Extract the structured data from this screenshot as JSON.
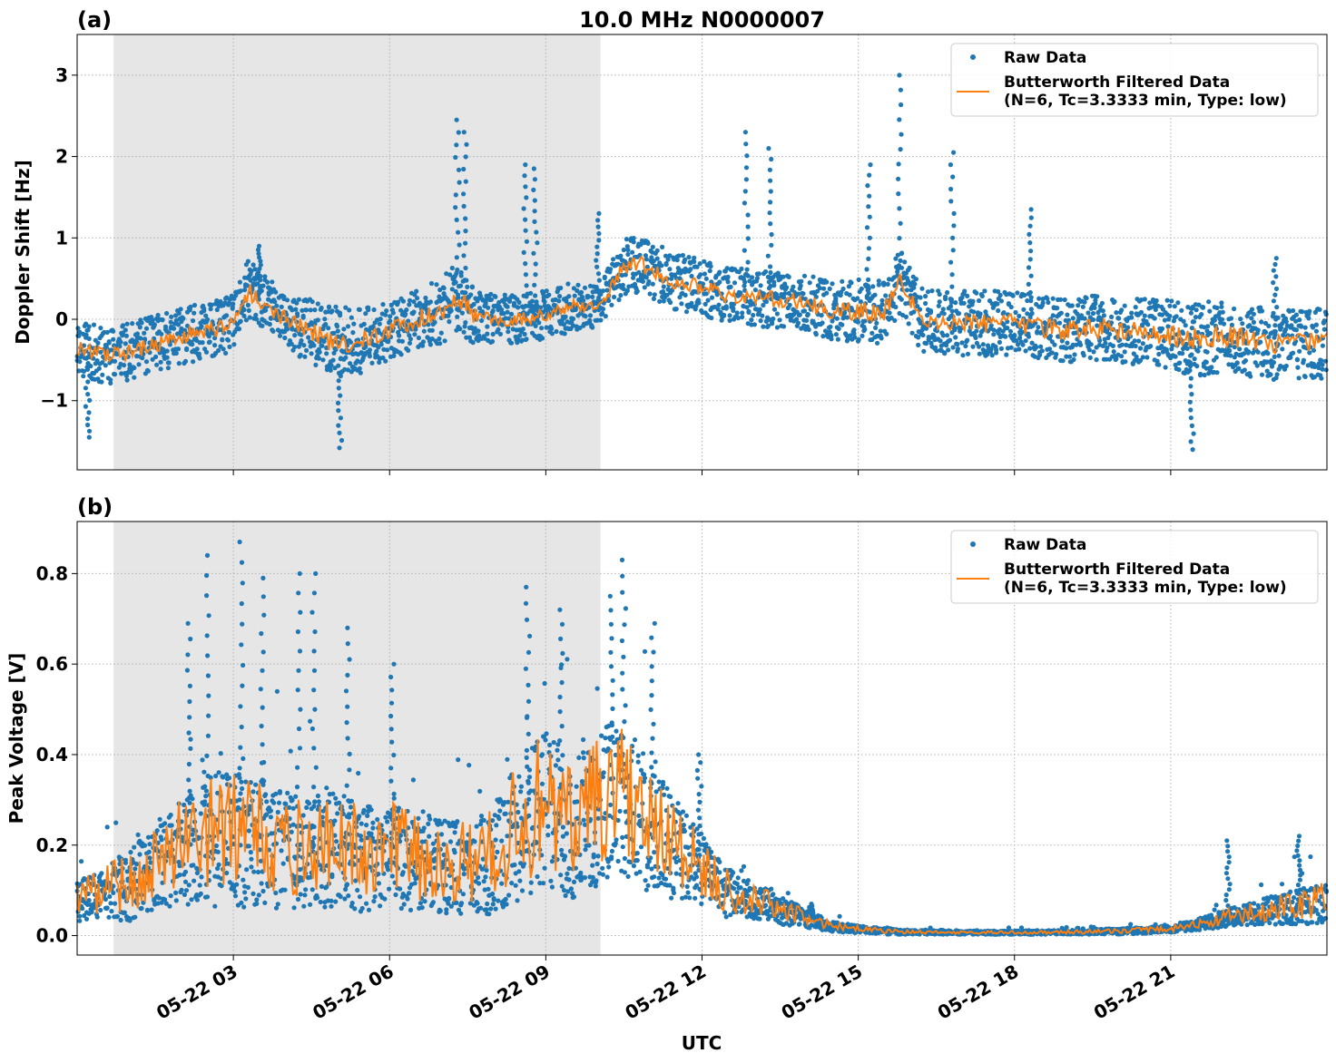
{
  "chart_data": [
    {
      "type": "scatter",
      "panel_label": "(a)",
      "title": "10.0 MHz N0000007",
      "xlabel": "",
      "ylabel": "Doppler Shift [Hz]",
      "x_unit": "hours since 05-22 00:00 UTC",
      "xlim": [
        0.0,
        24.0
      ],
      "ylim": [
        -1.85,
        3.5
      ],
      "yticks": [
        -1,
        0,
        1,
        2,
        3
      ],
      "ytick_labels": [
        "−1",
        "0",
        "1",
        "2",
        "3"
      ],
      "grid": true,
      "legend_position": "top-right",
      "shaded_xrange": [
        0.7,
        10.05
      ],
      "series": [
        {
          "name": "Raw Data",
          "style": "points",
          "color": "#1f77b4",
          "x": [
            0.0,
            0.5,
            1.0,
            1.5,
            2.0,
            2.5,
            3.0,
            3.3,
            3.6,
            4.0,
            4.5,
            5.0,
            5.5,
            6.0,
            6.5,
            7.0,
            7.3,
            7.6,
            8.0,
            8.5,
            9.0,
            9.5,
            10.0,
            10.3,
            10.6,
            10.9,
            11.2,
            11.5,
            12.0,
            12.5,
            13.0,
            13.5,
            14.0,
            14.5,
            15.0,
            15.5,
            15.8,
            16.2,
            16.8,
            17.5,
            18.0,
            18.5,
            19.0,
            19.5,
            20.0,
            20.5,
            21.0,
            21.5,
            22.0,
            22.5,
            23.0,
            23.5,
            24.0
          ],
          "y": [
            -0.35,
            -0.45,
            -0.4,
            -0.3,
            -0.2,
            -0.15,
            -0.05,
            0.35,
            0.2,
            0.0,
            -0.15,
            -0.3,
            -0.25,
            -0.15,
            0.0,
            0.1,
            0.3,
            0.05,
            0.0,
            0.0,
            0.05,
            0.15,
            0.15,
            0.45,
            0.7,
            0.65,
            0.55,
            0.45,
            0.4,
            0.3,
            0.25,
            0.25,
            0.2,
            0.1,
            0.1,
            0.1,
            0.45,
            0.0,
            -0.05,
            -0.05,
            -0.05,
            -0.1,
            -0.15,
            -0.1,
            -0.15,
            -0.15,
            -0.2,
            -0.25,
            -0.2,
            -0.25,
            -0.3,
            -0.3,
            -0.3
          ],
          "spread": [
            0.35,
            0.35,
            0.35,
            0.35,
            0.35,
            0.35,
            0.35,
            0.4,
            0.35,
            0.35,
            0.4,
            0.45,
            0.4,
            0.35,
            0.35,
            0.4,
            0.45,
            0.35,
            0.3,
            0.3,
            0.3,
            0.3,
            0.25,
            0.3,
            0.35,
            0.35,
            0.35,
            0.35,
            0.35,
            0.35,
            0.35,
            0.35,
            0.35,
            0.35,
            0.4,
            0.4,
            0.4,
            0.4,
            0.4,
            0.4,
            0.4,
            0.4,
            0.4,
            0.4,
            0.4,
            0.4,
            0.45,
            0.45,
            0.45,
            0.45,
            0.45,
            0.45,
            0.45
          ],
          "spikes": [
            {
              "x": 3.5,
              "y": 0.9
            },
            {
              "x": 5.05,
              "y": -1.58
            },
            {
              "x": 7.3,
              "y": 2.45
            },
            {
              "x": 7.45,
              "y": 2.3
            },
            {
              "x": 8.6,
              "y": 1.9
            },
            {
              "x": 8.8,
              "y": 1.85
            },
            {
              "x": 10.0,
              "y": 1.3
            },
            {
              "x": 12.85,
              "y": 2.3
            },
            {
              "x": 13.3,
              "y": 2.1
            },
            {
              "x": 15.2,
              "y": 1.9
            },
            {
              "x": 15.8,
              "y": 3.0
            },
            {
              "x": 16.8,
              "y": 2.05
            },
            {
              "x": 18.3,
              "y": 1.35
            },
            {
              "x": 21.4,
              "y": -1.6
            },
            {
              "x": 0.2,
              "y": -1.45
            },
            {
              "x": 23.0,
              "y": 0.75
            }
          ]
        },
        {
          "name": "Butterworth Filtered Data\n(N=6, Tc=3.3333 min, Type: low)",
          "style": "line",
          "color": "#ff7f0e"
        }
      ]
    },
    {
      "type": "scatter",
      "panel_label": "(b)",
      "title": "",
      "xlabel": "UTC",
      "ylabel": "Peak Voltage [V]",
      "x_unit": "hours since 05-22 00:00 UTC",
      "xlim": [
        0.0,
        24.0
      ],
      "ylim": [
        -0.043,
        0.915
      ],
      "yticks": [
        0.0,
        0.2,
        0.4,
        0.6,
        0.8
      ],
      "ytick_labels": [
        "0.0",
        "0.2",
        "0.4",
        "0.6",
        "0.8"
      ],
      "xticks": [
        3,
        6,
        9,
        12,
        15,
        18,
        21
      ],
      "xtick_labels": [
        "05-22 03",
        "05-22 06",
        "05-22 09",
        "05-22 12",
        "05-22 15",
        "05-22 18",
        "05-22 21"
      ],
      "grid": true,
      "legend_position": "top-right",
      "shaded_xrange": [
        0.7,
        10.05
      ],
      "series": [
        {
          "name": "Raw Data",
          "style": "points",
          "color": "#1f77b4",
          "x": [
            0.0,
            0.5,
            1.0,
            1.5,
            2.0,
            2.5,
            3.0,
            3.5,
            4.0,
            4.5,
            5.0,
            5.5,
            6.0,
            6.5,
            7.0,
            7.5,
            8.0,
            8.5,
            9.0,
            9.5,
            10.0,
            10.5,
            11.0,
            11.5,
            12.0,
            12.5,
            13.0,
            13.5,
            14.0,
            14.5,
            15.0,
            15.5,
            16.0,
            17.0,
            18.0,
            19.0,
            20.0,
            20.5,
            21.0,
            21.5,
            22.0,
            22.5,
            23.0,
            23.5,
            24.0
          ],
          "y": [
            0.08,
            0.1,
            0.12,
            0.16,
            0.2,
            0.22,
            0.24,
            0.22,
            0.2,
            0.2,
            0.2,
            0.18,
            0.2,
            0.18,
            0.16,
            0.16,
            0.18,
            0.25,
            0.3,
            0.25,
            0.3,
            0.33,
            0.25,
            0.2,
            0.15,
            0.1,
            0.08,
            0.06,
            0.04,
            0.02,
            0.015,
            0.01,
            0.008,
            0.007,
            0.007,
            0.008,
            0.01,
            0.012,
            0.015,
            0.025,
            0.04,
            0.05,
            0.06,
            0.07,
            0.08
          ],
          "spread": [
            0.06,
            0.07,
            0.1,
            0.12,
            0.15,
            0.18,
            0.2,
            0.18,
            0.16,
            0.16,
            0.16,
            0.15,
            0.15,
            0.15,
            0.13,
            0.13,
            0.15,
            0.2,
            0.22,
            0.2,
            0.22,
            0.22,
            0.18,
            0.14,
            0.1,
            0.07,
            0.05,
            0.04,
            0.025,
            0.015,
            0.01,
            0.008,
            0.006,
            0.005,
            0.005,
            0.006,
            0.008,
            0.009,
            0.01,
            0.015,
            0.025,
            0.03,
            0.04,
            0.05,
            0.06
          ],
          "spikes": [
            {
              "x": 2.5,
              "y": 0.84
            },
            {
              "x": 3.15,
              "y": 0.87
            },
            {
              "x": 3.55,
              "y": 0.79
            },
            {
              "x": 4.25,
              "y": 0.8
            },
            {
              "x": 4.55,
              "y": 0.8
            },
            {
              "x": 5.2,
              "y": 0.68
            },
            {
              "x": 8.65,
              "y": 0.77
            },
            {
              "x": 9.3,
              "y": 0.72
            },
            {
              "x": 10.25,
              "y": 0.75
            },
            {
              "x": 10.5,
              "y": 0.83
            },
            {
              "x": 11.05,
              "y": 0.69
            },
            {
              "x": 11.95,
              "y": 0.4
            },
            {
              "x": 14.1,
              "y": 0.07
            },
            {
              "x": 22.1,
              "y": 0.21
            },
            {
              "x": 23.45,
              "y": 0.22
            },
            {
              "x": 2.15,
              "y": 0.69
            },
            {
              "x": 6.05,
              "y": 0.6
            }
          ]
        },
        {
          "name": "Butterworth Filtered Data\n(N=6, Tc=3.3333 min, Type: low)",
          "style": "line",
          "color": "#ff7f0e"
        }
      ]
    }
  ]
}
